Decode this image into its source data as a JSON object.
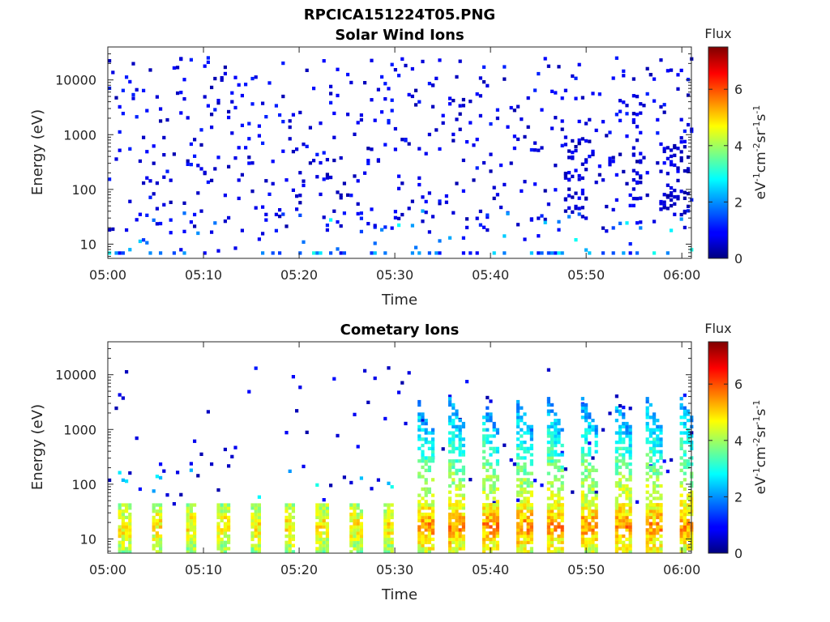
{
  "figure": {
    "filename": "RPCICA151224T05.PNG"
  },
  "colorbar": {
    "title": "Flux",
    "ticks": [
      "0",
      "2",
      "4",
      "6"
    ],
    "range": [
      0,
      7.5
    ],
    "colormap": "jet",
    "units": {
      "base": "eV",
      "e1": "-1",
      "cm": "cm",
      "e2": "-2",
      "sr": "sr",
      "e3": "-1",
      "s": "s",
      "e4": "-1"
    }
  },
  "chart_data": [
    {
      "type": "heatmap",
      "title": "Solar Wind Ions",
      "xlabel": "Time",
      "ylabel": "Energy (eV)",
      "x_ticks": [
        "05:00",
        "05:10",
        "05:20",
        "05:30",
        "05:40",
        "05:50",
        "06:00"
      ],
      "y_ticks": [
        "10",
        "100",
        "1000",
        "10000"
      ],
      "y_scale": "log",
      "x_range_minutes": [
        0,
        61
      ],
      "y_range": [
        5.5,
        40000
      ],
      "grid": false,
      "description_of_values": "sparse scattered low-flux (0-2) points across all energies; higher-energy clusters near 05:48-05:50 and 05:55; few moderate (2-4) points below 40 eV"
    },
    {
      "type": "heatmap",
      "title": "Cometary Ions",
      "xlabel": "Time",
      "ylabel": "Energy (eV)",
      "x_ticks": [
        "05:00",
        "05:10",
        "05:20",
        "05:30",
        "05:40",
        "05:50",
        "06:00"
      ],
      "y_ticks": [
        "10",
        "100",
        "1000",
        "10000"
      ],
      "y_scale": "log",
      "x_range_minutes": [
        0,
        61
      ],
      "y_range": [
        5.5,
        40000
      ],
      "grid": false,
      "description_of_values": "periodic bursts every ~3.5 min below 40 eV with flux 3-6; after 05:32 the bursts extend upward as dispersed streaks to 1000-5000 eV; sparse low-flux points above"
    }
  ]
}
